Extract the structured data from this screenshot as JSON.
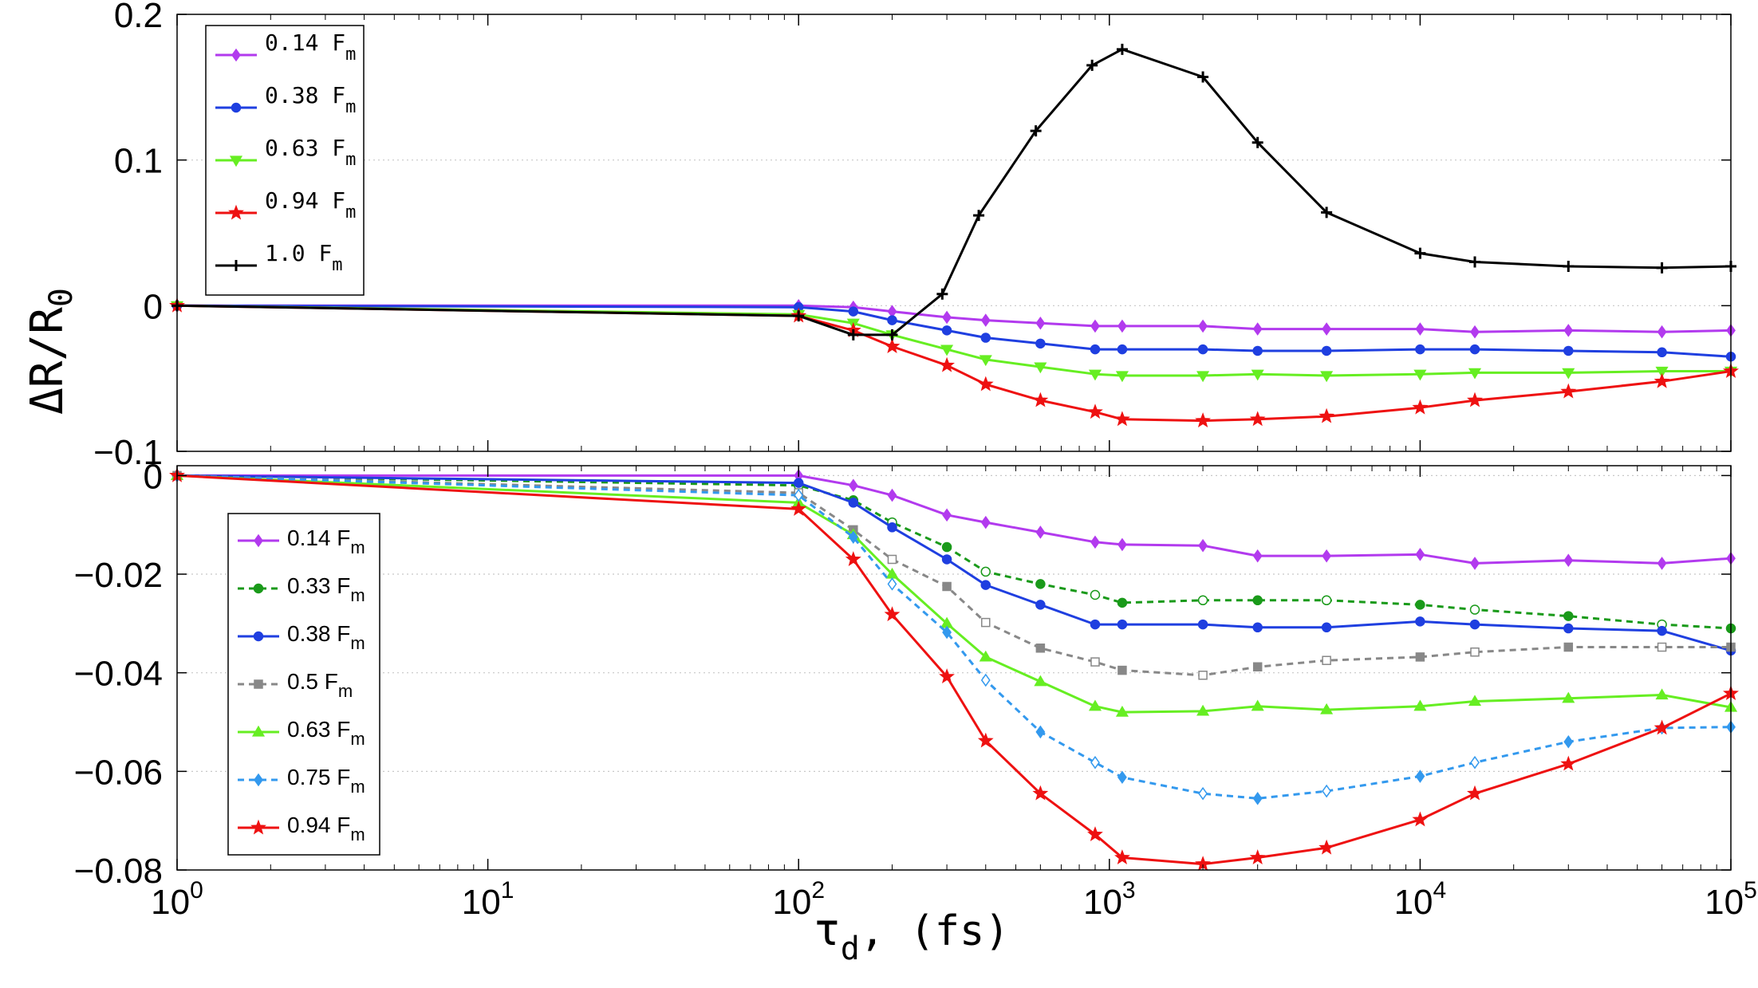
{
  "chart_data": [
    {
      "type": "line",
      "panel": "top",
      "xscale": "log",
      "xlim": [
        1,
        100000
      ],
      "ylim": [
        -0.1,
        0.2
      ],
      "yticks": [
        "−0.1",
        "0",
        "0.1",
        "0.2"
      ],
      "grid": "horizontal-dotted",
      "legend": "top-left",
      "series": [
        {
          "name": "0.14",
          "unit": "F",
          "sub": "m",
          "color": "#b23aee",
          "marker": "diamond",
          "dashed": false,
          "x": [
            1,
            100,
            150,
            200,
            300,
            400,
            600,
            900,
            1100,
            2000,
            3000,
            5000,
            10000,
            15000,
            30000,
            60000,
            100000
          ],
          "y": [
            0,
            0,
            -0.001,
            -0.004,
            -0.008,
            -0.01,
            -0.012,
            -0.014,
            -0.014,
            -0.014,
            -0.016,
            -0.016,
            -0.016,
            -0.018,
            -0.017,
            -0.018,
            -0.017
          ]
        },
        {
          "name": "0.38",
          "unit": "F",
          "sub": "m",
          "color": "#1f3fe0",
          "marker": "circle",
          "dashed": false,
          "x": [
            1,
            100,
            150,
            200,
            300,
            400,
            600,
            900,
            1100,
            2000,
            3000,
            5000,
            10000,
            15000,
            30000,
            60000,
            100000
          ],
          "y": [
            0,
            -0.001,
            -0.004,
            -0.01,
            -0.017,
            -0.022,
            -0.026,
            -0.03,
            -0.03,
            -0.03,
            -0.031,
            -0.031,
            -0.03,
            -0.03,
            -0.031,
            -0.032,
            -0.035
          ]
        },
        {
          "name": "0.63",
          "unit": "F",
          "sub": "m",
          "color": "#66ee22",
          "marker": "triangle-down",
          "dashed": false,
          "x": [
            1,
            100,
            150,
            200,
            300,
            400,
            600,
            900,
            1100,
            2000,
            3000,
            5000,
            10000,
            15000,
            30000,
            60000,
            100000
          ],
          "y": [
            0,
            -0.006,
            -0.012,
            -0.02,
            -0.03,
            -0.037,
            -0.042,
            -0.047,
            -0.048,
            -0.048,
            -0.047,
            -0.048,
            -0.047,
            -0.046,
            -0.046,
            -0.045,
            -0.045
          ]
        },
        {
          "name": "0.94",
          "unit": "F",
          "sub": "m",
          "color": "#ee1111",
          "marker": "star",
          "dashed": false,
          "x": [
            1,
            100,
            150,
            200,
            300,
            400,
            600,
            900,
            1100,
            2000,
            3000,
            5000,
            10000,
            15000,
            30000,
            60000,
            100000
          ],
          "y": [
            0,
            -0.007,
            -0.017,
            -0.028,
            -0.041,
            -0.054,
            -0.065,
            -0.073,
            -0.078,
            -0.079,
            -0.078,
            -0.076,
            -0.07,
            -0.065,
            -0.059,
            -0.052,
            -0.045
          ]
        },
        {
          "name": "1.0",
          "unit": "F",
          "sub": "m",
          "color": "#000000",
          "marker": "plus",
          "dashed": false,
          "x": [
            1,
            100,
            150,
            200,
            290,
            380,
            580,
            880,
            1100,
            2000,
            3000,
            5000,
            10000,
            15000,
            30000,
            60000,
            100000
          ],
          "y": [
            0,
            -0.007,
            -0.02,
            -0.02,
            0.008,
            0.062,
            0.12,
            0.165,
            0.176,
            0.157,
            0.112,
            0.064,
            0.036,
            0.03,
            0.027,
            0.026,
            0.027
          ]
        }
      ]
    },
    {
      "type": "line",
      "panel": "bottom",
      "xscale": "log",
      "xlim": [
        1,
        100000
      ],
      "ylim": [
        -0.08,
        0.002
      ],
      "yticks": [
        "−0.08",
        "−0.06",
        "−0.04",
        "−0.02",
        "0"
      ],
      "xticks": [
        "10",
        "10",
        "10",
        "10",
        "10",
        "10"
      ],
      "xtick_exponents": [
        "0",
        "1",
        "2",
        "3",
        "4",
        "5"
      ],
      "grid": "horizontal-dotted",
      "legend": "left-center",
      "series": [
        {
          "name": "0.14",
          "unit": "F",
          "sub": "m",
          "color": "#b23aee",
          "marker": "diamond",
          "dashed": false,
          "x": [
            1,
            100,
            150,
            200,
            300,
            400,
            600,
            900,
            1100,
            2000,
            3000,
            5000,
            10000,
            15000,
            30000,
            60000,
            100000
          ],
          "y": [
            0,
            0,
            -0.002,
            -0.004,
            -0.008,
            -0.0095,
            -0.0115,
            -0.0135,
            -0.014,
            -0.0142,
            -0.0163,
            -0.0163,
            -0.016,
            -0.0178,
            -0.0172,
            -0.0178,
            -0.0168
          ]
        },
        {
          "name": "0.33",
          "unit": "F",
          "sub": "m",
          "color": "#1a9a1a",
          "marker": "circle",
          "dashed": true,
          "x": [
            1,
            100,
            150,
            200,
            300,
            400,
            600,
            900,
            1100,
            2000,
            3000,
            5000,
            10000,
            15000,
            30000,
            60000,
            100000
          ],
          "y": [
            0,
            -0.002,
            -0.005,
            -0.0095,
            -0.0145,
            -0.0195,
            -0.022,
            -0.0242,
            -0.0258,
            -0.0253,
            -0.0253,
            -0.0253,
            -0.0262,
            -0.0272,
            -0.0285,
            -0.0302,
            -0.031
          ]
        },
        {
          "name": "0.38",
          "unit": "F",
          "sub": "m",
          "color": "#1f3fe0",
          "marker": "circle",
          "dashed": false,
          "x": [
            1,
            100,
            150,
            200,
            300,
            400,
            600,
            900,
            1100,
            2000,
            3000,
            5000,
            10000,
            15000,
            30000,
            60000,
            100000
          ],
          "y": [
            0,
            -0.0015,
            -0.0055,
            -0.0105,
            -0.017,
            -0.0222,
            -0.0262,
            -0.0302,
            -0.0302,
            -0.0302,
            -0.0308,
            -0.0308,
            -0.0296,
            -0.0302,
            -0.031,
            -0.0315,
            -0.0355
          ]
        },
        {
          "name": "0.5",
          "unit": "F",
          "sub": "m",
          "color": "#888888",
          "marker": "square",
          "dashed": true,
          "x": [
            1,
            100,
            150,
            200,
            300,
            400,
            600,
            900,
            1100,
            2000,
            3000,
            5000,
            10000,
            15000,
            30000,
            60000,
            100000
          ],
          "y": [
            0,
            -0.0035,
            -0.011,
            -0.017,
            -0.0225,
            -0.0298,
            -0.035,
            -0.0378,
            -0.0395,
            -0.0405,
            -0.0388,
            -0.0375,
            -0.0368,
            -0.0358,
            -0.0348,
            -0.0348,
            -0.0348
          ]
        },
        {
          "name": "0.63",
          "unit": "F",
          "sub": "m",
          "color": "#66ee22",
          "marker": "triangle-up",
          "dashed": false,
          "x": [
            1,
            100,
            150,
            200,
            300,
            400,
            600,
            900,
            1100,
            2000,
            3000,
            5000,
            10000,
            15000,
            30000,
            60000,
            100000
          ],
          "y": [
            0,
            -0.0055,
            -0.012,
            -0.02,
            -0.03,
            -0.0368,
            -0.0418,
            -0.0468,
            -0.048,
            -0.0478,
            -0.0468,
            -0.0475,
            -0.0468,
            -0.0458,
            -0.0452,
            -0.0445,
            -0.047
          ]
        },
        {
          "name": "0.75",
          "unit": "F",
          "sub": "m",
          "color": "#3399ee",
          "marker": "diamond",
          "dashed": true,
          "x": [
            1,
            100,
            150,
            200,
            300,
            400,
            600,
            900,
            1100,
            2000,
            3000,
            5000,
            10000,
            15000,
            30000,
            60000,
            100000
          ],
          "y": [
            0,
            -0.004,
            -0.0125,
            -0.022,
            -0.0318,
            -0.0415,
            -0.052,
            -0.0582,
            -0.0612,
            -0.0645,
            -0.0655,
            -0.064,
            -0.061,
            -0.0582,
            -0.054,
            -0.0512,
            -0.051
          ]
        },
        {
          "name": "0.94",
          "unit": "F",
          "sub": "m",
          "color": "#ee1111",
          "marker": "star",
          "dashed": false,
          "x": [
            1,
            100,
            150,
            200,
            300,
            400,
            600,
            900,
            1100,
            2000,
            3000,
            5000,
            10000,
            15000,
            30000,
            60000,
            100000
          ],
          "y": [
            0,
            -0.0068,
            -0.017,
            -0.0282,
            -0.0408,
            -0.0538,
            -0.0645,
            -0.0728,
            -0.0775,
            -0.0788,
            -0.0775,
            -0.0755,
            -0.0698,
            -0.0645,
            -0.0585,
            -0.0512,
            -0.0442
          ]
        }
      ]
    }
  ],
  "ylabel": {
    "main": "ΔR/R",
    "sub": "0"
  },
  "xlabel": {
    "main": "τ",
    "sub": "d",
    "rest": ",  (fs)"
  }
}
